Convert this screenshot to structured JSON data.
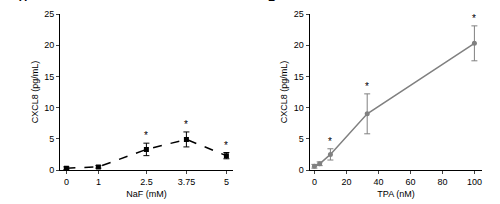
{
  "chart_data": [
    {
      "type": "line",
      "title": "A",
      "x": [
        0,
        1,
        2.5,
        3.75,
        5
      ],
      "values": [
        0.3,
        0.5,
        3.3,
        4.9,
        2.3
      ],
      "errors": [
        0.2,
        0.2,
        1.0,
        1.2,
        0.5
      ],
      "color": "#000000",
      "line_style": "dash",
      "marker": "square",
      "x_label": "NaF (mM)",
      "y_label": "CXCL8 (pg/mL)",
      "xlim": [
        -0.2,
        5.2
      ],
      "xticks": [
        0,
        1,
        2.5,
        3.75,
        5
      ],
      "ylim": [
        0,
        25
      ],
      "yticks": [
        0,
        5,
        10,
        15,
        20,
        25
      ],
      "grid": false,
      "annotations": [
        {
          "text": "*",
          "x": 2.5
        },
        {
          "text": "*",
          "x": 3.75
        },
        {
          "text": "*",
          "x": 5
        }
      ]
    },
    {
      "type": "line",
      "title": "B",
      "x": [
        0,
        3.3,
        10,
        33,
        100
      ],
      "values": [
        0.6,
        1.0,
        2.5,
        9.0,
        20.3
      ],
      "errors": [
        0.3,
        0.3,
        0.9,
        3.2,
        2.8
      ],
      "color": "#808080",
      "line_style": "solid",
      "marker": "circle",
      "x_label": "TPA (nM)",
      "y_label": "CXCL8 (pg/mL)",
      "xlim": [
        -3,
        105
      ],
      "xticks": [
        0,
        20,
        40,
        60,
        80,
        100
      ],
      "ylim": [
        0,
        25
      ],
      "yticks": [
        0,
        5,
        10,
        15,
        20,
        25
      ],
      "grid": false,
      "annotations": [
        {
          "text": "*",
          "x": 10
        },
        {
          "text": "*",
          "x": 33
        },
        {
          "text": "*",
          "x": 100
        }
      ]
    }
  ]
}
